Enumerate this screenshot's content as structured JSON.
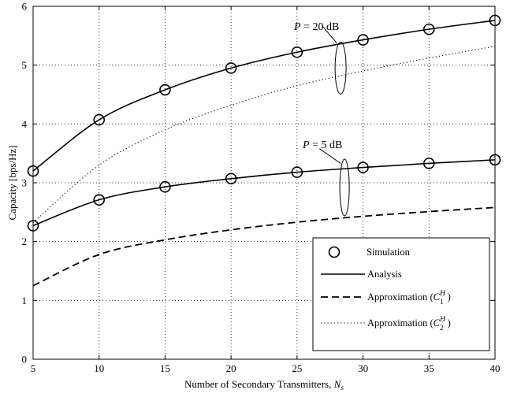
{
  "chart_data": {
    "type": "line",
    "xlabel": "Number of Secondary Transmitters, ",
    "xlabel_var": "N",
    "xlabel_sub": "s",
    "ylabel": "Capacity [bps/Hz]",
    "xlim": [
      5,
      40
    ],
    "ylim": [
      0,
      6
    ],
    "xticks": [
      5,
      10,
      15,
      20,
      25,
      30,
      35,
      40
    ],
    "yticks": [
      0,
      1,
      2,
      3,
      4,
      5,
      6
    ],
    "grid": true,
    "legend_position": "bottom-right",
    "annotations": [
      {
        "var": "P",
        "text": " = 20 dB",
        "group": "P20"
      },
      {
        "var": "P",
        "text": " = 5 dB",
        "group": "P5"
      }
    ],
    "legend": [
      {
        "key": "simulation",
        "label": "Simulation"
      },
      {
        "key": "analysis",
        "label": "Analysis"
      },
      {
        "key": "approx1",
        "label": "Approximation (",
        "sym": "C",
        "sup": "H",
        "sub": "1",
        "close": ")"
      },
      {
        "key": "approx2",
        "label": "Approximation (",
        "sym": "C",
        "sup": "H",
        "sub": "2",
        "close": ")"
      }
    ],
    "series": [
      {
        "group": "P20",
        "style": "solid",
        "x": [
          5,
          10,
          15,
          20,
          25,
          30,
          35,
          40
        ],
        "y": [
          3.2,
          4.07,
          4.58,
          4.95,
          5.22,
          5.43,
          5.61,
          5.76
        ]
      },
      {
        "group": "P20",
        "style": "markers",
        "x": [
          5,
          10,
          15,
          20,
          25,
          30,
          35,
          40
        ],
        "y": [
          3.2,
          4.07,
          4.58,
          4.95,
          5.22,
          5.43,
          5.61,
          5.76
        ]
      },
      {
        "group": "P20",
        "style": "dotted",
        "x": [
          5,
          10,
          15,
          20,
          25,
          30,
          35,
          40
        ],
        "y": [
          2.32,
          3.3,
          3.9,
          4.32,
          4.65,
          4.9,
          5.12,
          5.32
        ]
      },
      {
        "group": "P5",
        "style": "solid",
        "x": [
          5,
          10,
          15,
          20,
          25,
          30,
          35,
          40
        ],
        "y": [
          2.27,
          2.71,
          2.93,
          3.07,
          3.18,
          3.26,
          3.33,
          3.39
        ]
      },
      {
        "group": "P5",
        "style": "markers",
        "x": [
          5,
          10,
          15,
          20,
          25,
          30,
          35,
          40
        ],
        "y": [
          2.27,
          2.71,
          2.93,
          3.07,
          3.18,
          3.26,
          3.33,
          3.39
        ]
      },
      {
        "group": "P5",
        "style": "dashed",
        "x": [
          5,
          10,
          15,
          20,
          25,
          30,
          35,
          40
        ],
        "y": [
          1.25,
          1.78,
          2.03,
          2.2,
          2.33,
          2.43,
          2.51,
          2.58
        ]
      }
    ]
  }
}
